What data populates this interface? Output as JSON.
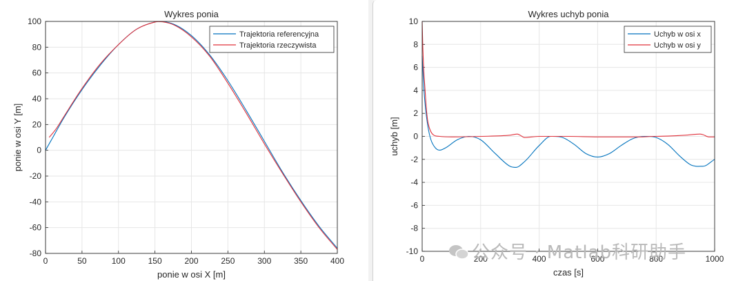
{
  "watermark": "公众号 · Matlab科研助手",
  "colors": {
    "series_blue": "#0072BD",
    "series_red": "#E0303A",
    "axis": "#262626",
    "grid": "#e6e6e6"
  },
  "chart_data": [
    {
      "type": "line",
      "title": "Wykres ponia",
      "xlabel": "ponie w osi X [m]",
      "ylabel": "ponie w osi Y [m]",
      "xlim": [
        0,
        400
      ],
      "ylim": [
        -80,
        100
      ],
      "xticks": [
        0,
        50,
        100,
        150,
        200,
        250,
        300,
        350,
        400
      ],
      "yticks": [
        -80,
        -60,
        -40,
        -20,
        0,
        20,
        40,
        60,
        80,
        100
      ],
      "grid": true,
      "legend_position": "top-right",
      "series": [
        {
          "name": "Trajektoria referencyjna",
          "color": "#0072BD",
          "x": [
            0,
            10,
            25,
            50,
            75,
            100,
            125,
            150,
            155,
            175,
            200,
            225,
            250,
            275,
            300,
            325,
            350,
            375,
            400
          ],
          "y": [
            0,
            10,
            25,
            47,
            66,
            82,
            94,
            99.6,
            100,
            98,
            89,
            74,
            54,
            31,
            7,
            -17,
            -39,
            -59,
            -76
          ]
        },
        {
          "name": "Trajektoria rzeczywista",
          "color": "#E0303A",
          "x": [
            5,
            8,
            15,
            25,
            50,
            75,
            100,
            125,
            150,
            155,
            175,
            200,
            225,
            250,
            275,
            300,
            325,
            350,
            375,
            400
          ],
          "y": [
            10,
            12,
            17,
            26,
            48,
            67,
            82,
            94,
            99.5,
            99.8,
            97.5,
            88,
            73,
            52,
            29,
            5,
            -18,
            -40,
            -60,
            -77
          ]
        }
      ]
    },
    {
      "type": "line",
      "title": "Wykres uchyb ponia",
      "xlabel": "czas [s]",
      "ylabel": "uchyb [m]",
      "xlim": [
        0,
        1000
      ],
      "ylim": [
        -10,
        10
      ],
      "xticks": [
        0,
        200,
        400,
        600,
        800,
        1000
      ],
      "yticks": [
        -10,
        -8,
        -6,
        -4,
        -2,
        0,
        2,
        4,
        6,
        8,
        10
      ],
      "grid": true,
      "legend_position": "top-right",
      "series": [
        {
          "name": "Uchyb w osi x",
          "color": "#0072BD",
          "x": [
            0,
            5,
            10,
            20,
            30,
            45,
            60,
            80,
            120,
            160,
            200,
            250,
            300,
            320,
            350,
            400,
            440,
            480,
            520,
            560,
            600,
            640,
            680,
            720,
            760,
            800,
            840,
            880,
            920,
            960,
            1000
          ],
          "y": [
            7,
            4.5,
            2.8,
            0.8,
            -0.3,
            -1.0,
            -1.2,
            -1.0,
            -0.3,
            0,
            -0.3,
            -1.5,
            -2.6,
            -2.7,
            -2.2,
            -0.8,
            0,
            -0.1,
            -0.7,
            -1.5,
            -1.8,
            -1.5,
            -0.8,
            -0.2,
            0,
            -0.1,
            -0.7,
            -1.7,
            -2.5,
            -2.6,
            -2.0
          ]
        },
        {
          "name": "Uchyb w osi y",
          "color": "#E0303A",
          "x": [
            0,
            2,
            5,
            10,
            15,
            20,
            30,
            40,
            60,
            100,
            200,
            300,
            325,
            335,
            350,
            400,
            500,
            600,
            700,
            750,
            790,
            800,
            900,
            950,
            960,
            980,
            1000
          ],
          "y": [
            10,
            8,
            6,
            4,
            2.2,
            1.2,
            0.4,
            0.1,
            0,
            -0.05,
            0,
            0.1,
            0.2,
            0.1,
            -0.1,
            0,
            0,
            -0.05,
            -0.05,
            -0.05,
            0,
            0,
            0.1,
            0.2,
            0.15,
            -0.05,
            -0.05
          ]
        }
      ]
    }
  ]
}
